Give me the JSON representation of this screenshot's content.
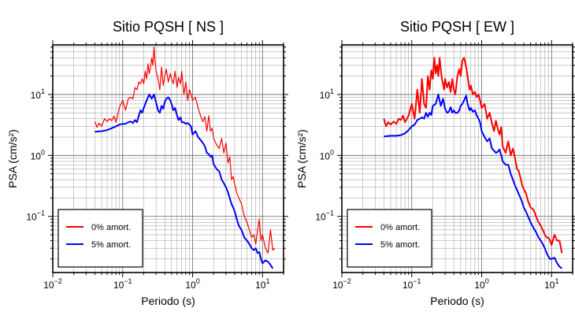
{
  "chart_data": [
    {
      "type": "line",
      "title": "Sitio PQSH [ NS ]",
      "xlabel": "Periodo (s)",
      "ylabel": "PSA (cm/s²)",
      "xscale": "log",
      "yscale": "log",
      "xlim": [
        0.01,
        20
      ],
      "ylim": [
        0.012,
        65
      ],
      "grid": true,
      "legend_position": "bottom-left",
      "x_ticks": [
        {
          "base": "10",
          "exp": "−2",
          "value": 0.01
        },
        {
          "base": "10",
          "exp": "−1",
          "value": 0.1
        },
        {
          "base": "10",
          "exp": "0",
          "value": 1
        },
        {
          "base": "10",
          "exp": "1",
          "value": 10
        }
      ],
      "y_ticks": [
        {
          "base": "10",
          "exp": "−1",
          "value": 0.1
        },
        {
          "base": "10",
          "exp": "0",
          "value": 1
        },
        {
          "base": "10",
          "exp": "1",
          "value": 10
        }
      ],
      "series": [
        {
          "name": "0% amort.",
          "color": "#ff0000",
          "stroke_width": 1.2,
          "x": [
            0.04,
            0.043,
            0.046,
            0.05,
            0.055,
            0.06,
            0.065,
            0.07,
            0.075,
            0.08,
            0.09,
            0.1,
            0.11,
            0.12,
            0.13,
            0.14,
            0.15,
            0.16,
            0.17,
            0.18,
            0.19,
            0.2,
            0.21,
            0.22,
            0.23,
            0.24,
            0.25,
            0.26,
            0.27,
            0.28,
            0.29,
            0.3,
            0.32,
            0.34,
            0.36,
            0.38,
            0.4,
            0.42,
            0.45,
            0.48,
            0.5,
            0.53,
            0.56,
            0.6,
            0.63,
            0.67,
            0.7,
            0.75,
            0.8,
            0.85,
            0.9,
            0.95,
            1.0,
            1.1,
            1.2,
            1.3,
            1.4,
            1.5,
            1.6,
            1.7,
            1.8,
            1.9,
            2.0,
            2.2,
            2.4,
            2.6,
            2.8,
            3.0,
            3.2,
            3.4,
            3.6,
            3.8,
            4.0,
            4.3,
            4.6,
            5.0,
            5.5,
            6.0,
            6.5,
            7.0,
            7.5,
            8.0,
            8.5,
            9.0,
            9.5,
            10.0,
            11.0,
            12.0,
            13.0,
            14.0,
            15.0
          ],
          "y": [
            3.6,
            2.9,
            3.4,
            3.0,
            4.0,
            3.6,
            4.0,
            3.7,
            4.4,
            3.5,
            6.2,
            8.0,
            5.5,
            8.5,
            9.0,
            8.5,
            13.0,
            12.0,
            16.0,
            15.0,
            18.0,
            15.0,
            24.0,
            18.0,
            32.0,
            22.0,
            28.0,
            40.0,
            30.0,
            60.0,
            35.0,
            25.0,
            18.0,
            12.0,
            28.0,
            14.0,
            20.0,
            26.0,
            16.0,
            22.0,
            18.0,
            15.0,
            24.0,
            13.0,
            19.0,
            15.0,
            24.0,
            10.0,
            16.0,
            8.0,
            12.0,
            10.0,
            8.0,
            9.0,
            6.0,
            4.5,
            3.6,
            4.3,
            2.5,
            4.5,
            2.5,
            2.8,
            1.9,
            1.5,
            1.3,
            1.9,
            1.1,
            1.6,
            0.75,
            0.95,
            0.4,
            0.45,
            0.34,
            0.24,
            0.2,
            0.16,
            0.1,
            0.08,
            0.06,
            0.045,
            0.05,
            0.035,
            0.06,
            0.09,
            0.04,
            0.05,
            0.03,
            0.025,
            0.06,
            0.028,
            0.03
          ]
        },
        {
          "name": "5% amort.",
          "color": "#0000ff",
          "stroke_width": 2,
          "x": [
            0.04,
            0.05,
            0.06,
            0.07,
            0.08,
            0.09,
            0.1,
            0.11,
            0.12,
            0.13,
            0.14,
            0.15,
            0.16,
            0.17,
            0.18,
            0.19,
            0.2,
            0.22,
            0.24,
            0.26,
            0.28,
            0.3,
            0.32,
            0.34,
            0.36,
            0.38,
            0.4,
            0.42,
            0.45,
            0.48,
            0.5,
            0.53,
            0.56,
            0.6,
            0.63,
            0.67,
            0.7,
            0.75,
            0.8,
            0.85,
            0.9,
            0.95,
            1.0,
            1.1,
            1.2,
            1.3,
            1.4,
            1.5,
            1.6,
            1.7,
            1.8,
            1.9,
            2.0,
            2.2,
            2.4,
            2.6,
            2.8,
            3.0,
            3.2,
            3.4,
            3.6,
            3.8,
            4.0,
            4.3,
            4.6,
            5.0,
            5.5,
            6.0,
            6.5,
            7.0,
            7.5,
            8.0,
            8.5,
            9.0,
            9.5,
            10.0,
            11.0,
            12.0,
            13.0,
            14.0
          ],
          "y": [
            2.45,
            2.5,
            2.6,
            2.8,
            3.0,
            3.2,
            3.3,
            3.3,
            3.5,
            3.6,
            3.4,
            3.8,
            3.5,
            4.5,
            5.5,
            5.0,
            6.0,
            8.0,
            10.0,
            8.5,
            10.0,
            7.5,
            5.5,
            5.0,
            6.5,
            5.8,
            7.5,
            8.5,
            9.0,
            8.0,
            7.0,
            5.5,
            6.0,
            4.5,
            3.8,
            4.2,
            3.5,
            3.5,
            3.3,
            3.4,
            3.2,
            3.0,
            2.2,
            2.5,
            2.0,
            1.8,
            1.6,
            1.4,
            1.1,
            1.05,
            0.95,
            1.0,
            0.72,
            0.6,
            0.55,
            0.4,
            0.35,
            0.3,
            0.25,
            0.2,
            0.16,
            0.14,
            0.12,
            0.09,
            0.07,
            0.06,
            0.045,
            0.04,
            0.035,
            0.03,
            0.028,
            0.03,
            0.025,
            0.026,
            0.02,
            0.017,
            0.019,
            0.018,
            0.016,
            0.014
          ]
        }
      ]
    },
    {
      "type": "line",
      "title": "Sitio PQSH [ EW ]",
      "xlabel": "Periodo (s)",
      "ylabel": "PSA (cm/s²)",
      "xscale": "log",
      "yscale": "log",
      "xlim": [
        0.01,
        20
      ],
      "ylim": [
        0.012,
        65
      ],
      "grid": true,
      "legend_position": "bottom-left",
      "x_ticks": [
        {
          "base": "10",
          "exp": "−2",
          "value": 0.01
        },
        {
          "base": "10",
          "exp": "−1",
          "value": 0.1
        },
        {
          "base": "10",
          "exp": "0",
          "value": 1
        },
        {
          "base": "10",
          "exp": "1",
          "value": 10
        }
      ],
      "y_ticks": [
        {
          "base": "10",
          "exp": "−1",
          "value": 0.1
        },
        {
          "base": "10",
          "exp": "0",
          "value": 1
        },
        {
          "base": "10",
          "exp": "1",
          "value": 10
        }
      ],
      "series": [
        {
          "name": "0% amort.",
          "color": "#ff0000",
          "stroke_width": 2,
          "x": [
            0.04,
            0.043,
            0.046,
            0.05,
            0.055,
            0.06,
            0.065,
            0.07,
            0.075,
            0.08,
            0.09,
            0.1,
            0.11,
            0.12,
            0.13,
            0.14,
            0.15,
            0.16,
            0.17,
            0.18,
            0.19,
            0.2,
            0.21,
            0.22,
            0.23,
            0.24,
            0.25,
            0.26,
            0.27,
            0.28,
            0.29,
            0.3,
            0.32,
            0.34,
            0.36,
            0.38,
            0.4,
            0.42,
            0.45,
            0.48,
            0.5,
            0.53,
            0.56,
            0.6,
            0.63,
            0.67,
            0.7,
            0.75,
            0.8,
            0.85,
            0.9,
            0.95,
            1.0,
            1.1,
            1.2,
            1.3,
            1.4,
            1.5,
            1.6,
            1.7,
            1.8,
            1.9,
            2.0,
            2.2,
            2.4,
            2.6,
            2.8,
            3.0,
            3.2,
            3.4,
            3.6,
            3.8,
            4.0,
            4.3,
            4.6,
            5.0,
            5.5,
            6.0,
            6.5,
            7.0,
            7.5,
            8.0,
            8.5,
            9.0,
            9.5,
            10.0,
            11.0,
            12.0,
            13.0,
            14.0
          ],
          "y": [
            4.0,
            3.0,
            3.5,
            3.2,
            3.6,
            3.3,
            4.0,
            3.8,
            4.5,
            3.5,
            4.5,
            7.0,
            4.0,
            12.0,
            5.0,
            18.0,
            7.0,
            6.0,
            20.0,
            12.0,
            25.0,
            18.0,
            40.0,
            22.0,
            30.0,
            20.0,
            40.0,
            26.0,
            18.0,
            15.0,
            12.0,
            18.0,
            13.0,
            16.0,
            11.0,
            18.0,
            12.0,
            10.0,
            20.0,
            26.0,
            20.0,
            36.0,
            40.0,
            28.0,
            20.0,
            12.0,
            14.0,
            10.0,
            11.0,
            9.0,
            10.0,
            8.0,
            6.0,
            7.0,
            4.0,
            5.0,
            3.4,
            2.5,
            3.7,
            2.7,
            2.2,
            2.9,
            1.4,
            1.1,
            1.7,
            1.0,
            1.3,
            0.9,
            0.6,
            0.55,
            0.42,
            0.32,
            0.28,
            0.24,
            0.18,
            0.14,
            0.13,
            0.1,
            0.08,
            0.07,
            0.06,
            0.05,
            0.045,
            0.045,
            0.04,
            0.034,
            0.05,
            0.04,
            0.04,
            0.025
          ]
        },
        {
          "name": "5% amort.",
          "color": "#0000ff",
          "stroke_width": 2,
          "x": [
            0.04,
            0.05,
            0.06,
            0.07,
            0.08,
            0.09,
            0.1,
            0.11,
            0.12,
            0.13,
            0.14,
            0.15,
            0.16,
            0.17,
            0.18,
            0.19,
            0.2,
            0.22,
            0.24,
            0.26,
            0.28,
            0.3,
            0.32,
            0.34,
            0.36,
            0.38,
            0.4,
            0.42,
            0.45,
            0.48,
            0.5,
            0.53,
            0.56,
            0.6,
            0.63,
            0.67,
            0.7,
            0.75,
            0.8,
            0.85,
            0.9,
            0.95,
            1.0,
            1.1,
            1.2,
            1.3,
            1.4,
            1.5,
            1.6,
            1.7,
            1.8,
            1.9,
            2.0,
            2.2,
            2.4,
            2.6,
            2.8,
            3.0,
            3.2,
            3.4,
            3.6,
            3.8,
            4.0,
            4.3,
            4.6,
            5.0,
            5.5,
            6.0,
            6.5,
            7.0,
            7.5,
            8.0,
            8.5,
            9.0,
            9.5,
            10.0,
            11.0,
            12.0,
            13.0,
            14.0
          ],
          "y": [
            2.05,
            2.1,
            2.1,
            2.15,
            2.3,
            2.6,
            3.0,
            3.2,
            3.8,
            4.0,
            4.2,
            4.0,
            5.0,
            4.3,
            5.0,
            4.6,
            6.5,
            7.0,
            10.0,
            6.5,
            8.5,
            5.8,
            5.0,
            5.2,
            6.2,
            5.0,
            5.5,
            5.0,
            5.0,
            5.5,
            6.5,
            7.0,
            8.0,
            9.5,
            7.0,
            5.5,
            6.0,
            5.2,
            5.5,
            4.5,
            4.0,
            3.5,
            2.5,
            2.0,
            1.7,
            1.9,
            1.3,
            1.2,
            1.1,
            1.15,
            1.25,
            1.0,
            0.8,
            0.7,
            0.7,
            0.5,
            0.4,
            0.32,
            0.27,
            0.23,
            0.2,
            0.17,
            0.14,
            0.12,
            0.1,
            0.08,
            0.065,
            0.055,
            0.045,
            0.04,
            0.035,
            0.03,
            0.025,
            0.022,
            0.02,
            0.02,
            0.021,
            0.017,
            0.015,
            0.014
          ]
        }
      ]
    }
  ]
}
